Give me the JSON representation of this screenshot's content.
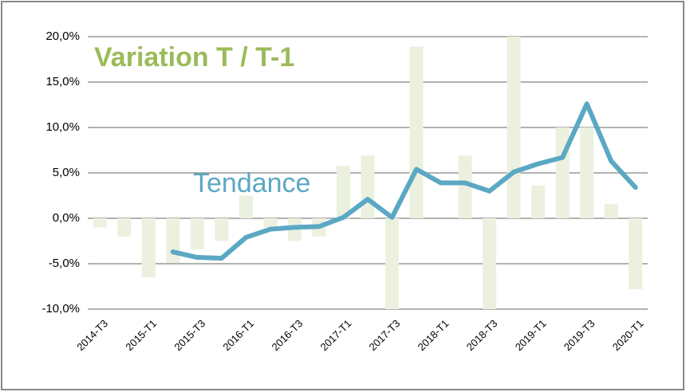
{
  "chart_data": {
    "type": "bar-line",
    "categories": [
      "2014-T3",
      null,
      "2015-T1",
      null,
      "2015-T3",
      null,
      "2016-T1",
      null,
      "2016-T3",
      null,
      "2017-T1",
      null,
      "2017-T3",
      null,
      "2018-T1",
      null,
      "2018-T3",
      null,
      "2019-T1",
      null,
      "2019-T3",
      null,
      "2020-T1"
    ],
    "series": [
      {
        "name": "Variation T / T-1",
        "type": "bar",
        "color": "#ebf1de",
        "values": [
          -1,
          -2,
          -6.5,
          -4.9,
          -3.4,
          -2.5,
          2.5,
          -1,
          -2.5,
          -2,
          5.8,
          6.9,
          -10,
          18.9,
          0,
          6.9,
          -10,
          20,
          3.6,
          10,
          10,
          1.6,
          -7.8
        ]
      },
      {
        "name": "Tendance",
        "type": "line",
        "color": "#5ba8c4",
        "values": [
          null,
          null,
          null,
          -3.7,
          -4.3,
          -4.4,
          -2.1,
          -1.2,
          -1.0,
          -0.9,
          0.1,
          2.1,
          0.1,
          5.4,
          3.9,
          3.9,
          3.0,
          5.1,
          6.0,
          6.7,
          12.6,
          6.3,
          3.4
        ]
      }
    ],
    "ylim": [
      -10,
      20
    ],
    "yticks": [
      {
        "value": -10,
        "label": "-10,0%"
      },
      {
        "value": -5,
        "label": "-5,0%"
      },
      {
        "value": 0,
        "label": "0,0%"
      },
      {
        "value": 5,
        "label": "5,0%"
      },
      {
        "value": 10,
        "label": "10,0%"
      },
      {
        "value": 15,
        "label": "15,0%"
      },
      {
        "value": 20,
        "label": "20,0%"
      }
    ],
    "grid": true
  }
}
